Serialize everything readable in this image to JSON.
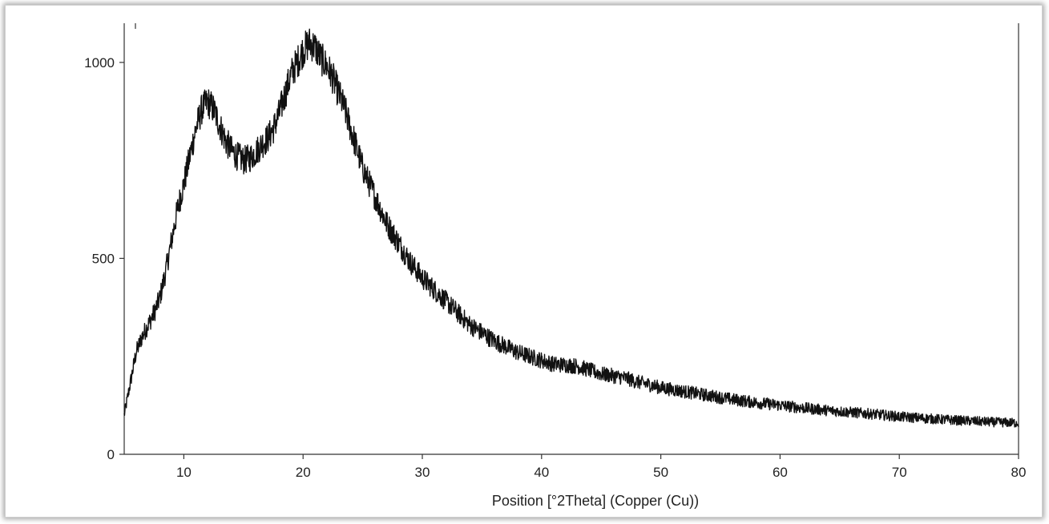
{
  "chart_data": {
    "type": "line",
    "title": "",
    "xlabel": "Position [°2Theta] (Copper (Cu))",
    "ylabel": "",
    "xlim": [
      5,
      80
    ],
    "ylim": [
      0,
      1100
    ],
    "x_ticks": [
      10,
      20,
      30,
      40,
      50,
      60,
      70,
      80
    ],
    "y_ticks": [
      0,
      500,
      1000
    ],
    "x_tick_labels": [
      "10",
      "20",
      "30",
      "40",
      "50",
      "60",
      "70",
      "80"
    ],
    "y_tick_labels": [
      "0",
      "500",
      "1000"
    ],
    "grid": false,
    "legend": "none",
    "line_color": "#111111",
    "series": [
      {
        "x": [
          5,
          5.5,
          6,
          6.5,
          7,
          7.5,
          8,
          8.5,
          9,
          9.5,
          10,
          10.5,
          11,
          11.5,
          12,
          12.5,
          13,
          13.5,
          14,
          14.5,
          15,
          15.5,
          16,
          16.5,
          17,
          17.5,
          18,
          18.5,
          19,
          19.5,
          20,
          20.5,
          21,
          21.5,
          22,
          22.5,
          23,
          23.5,
          24,
          25,
          26,
          27,
          28,
          29,
          30,
          31,
          32,
          33,
          34,
          35,
          36,
          37,
          38,
          39,
          40,
          41,
          42,
          43,
          44,
          45,
          46,
          47,
          48,
          49,
          50,
          52,
          54,
          56,
          58,
          60,
          62,
          64,
          66,
          68,
          70,
          72,
          74,
          76,
          78,
          80
        ],
        "y": [
          100,
          180,
          260,
          300,
          330,
          360,
          400,
          470,
          550,
          630,
          690,
          760,
          830,
          880,
          900,
          880,
          840,
          800,
          775,
          760,
          750,
          755,
          770,
          790,
          805,
          830,
          870,
          920,
          970,
          1000,
          1030,
          1050,
          1040,
          1010,
          990,
          960,
          920,
          880,
          830,
          730,
          660,
          590,
          540,
          490,
          450,
          420,
          390,
          360,
          330,
          310,
          290,
          275,
          260,
          250,
          240,
          230,
          228,
          225,
          215,
          205,
          200,
          195,
          185,
          178,
          170,
          160,
          150,
          140,
          132,
          125,
          118,
          112,
          107,
          102,
          96,
          92,
          88,
          85,
          82,
          80
        ]
      }
    ]
  }
}
